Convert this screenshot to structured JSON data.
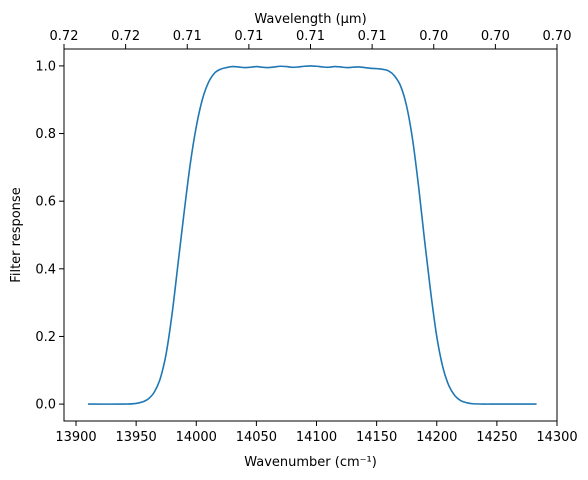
{
  "chart_data": {
    "type": "line",
    "title": "",
    "xlabel": "Wavenumber (cm⁻¹)",
    "ylabel": "Filter response",
    "top_xlabel": "Wavelength (μm)",
    "xlim": [
      13890,
      14300
    ],
    "ylim": [
      -0.05,
      1.05
    ],
    "x_ticks": [
      13900,
      13950,
      14000,
      14050,
      14100,
      14150,
      14200,
      14250,
      14300
    ],
    "x_tick_labels": [
      "13900",
      "13950",
      "14000",
      "14050",
      "14100",
      "14150",
      "14200",
      "14250",
      "14300"
    ],
    "y_ticks": [
      0.0,
      0.2,
      0.4,
      0.6,
      0.8,
      1.0
    ],
    "y_tick_labels": [
      "0.0",
      "0.2",
      "0.4",
      "0.6",
      "0.8",
      "1.0"
    ],
    "top_x_ticks": [
      13890,
      13941.25,
      13992.5,
      14043.75,
      14095,
      14146.25,
      14197.5,
      14248.75,
      14300
    ],
    "top_x_tick_labels": [
      "0.72",
      "0.72",
      "0.71",
      "0.71",
      "0.71",
      "0.71",
      "0.70",
      "0.70",
      "0.70"
    ],
    "grid": false,
    "legend": "none",
    "series": [
      {
        "color": "#1f77b4",
        "x": [
          13910,
          13940,
          13950,
          13955,
          13960,
          13965,
          13970,
          13975,
          13980,
          13985,
          13990,
          13995,
          14000,
          14005,
          14010,
          14015,
          14020,
          14025,
          14030,
          14035,
          14040,
          14045,
          14050,
          14055,
          14060,
          14065,
          14070,
          14075,
          14080,
          14085,
          14090,
          14095,
          14100,
          14105,
          14110,
          14115,
          14120,
          14125,
          14130,
          14135,
          14140,
          14145,
          14150,
          14155,
          14160,
          14165,
          14170,
          14175,
          14180,
          14185,
          14190,
          14195,
          14200,
          14205,
          14210,
          14215,
          14220,
          14225,
          14230,
          14240,
          14250,
          14283
        ],
        "y": [
          0.0,
          0.0,
          0.002,
          0.006,
          0.015,
          0.035,
          0.075,
          0.15,
          0.27,
          0.42,
          0.57,
          0.71,
          0.82,
          0.9,
          0.95,
          0.978,
          0.99,
          0.995,
          0.998,
          0.997,
          0.995,
          0.996,
          0.998,
          0.996,
          0.995,
          0.997,
          0.999,
          0.998,
          0.996,
          0.997,
          0.999,
          1.0,
          0.999,
          0.997,
          0.996,
          0.998,
          0.997,
          0.995,
          0.996,
          0.997,
          0.995,
          0.993,
          0.992,
          0.99,
          0.985,
          0.97,
          0.94,
          0.88,
          0.78,
          0.64,
          0.48,
          0.33,
          0.2,
          0.11,
          0.055,
          0.025,
          0.01,
          0.004,
          0.001,
          0.0,
          0.0,
          0.0
        ]
      }
    ]
  }
}
